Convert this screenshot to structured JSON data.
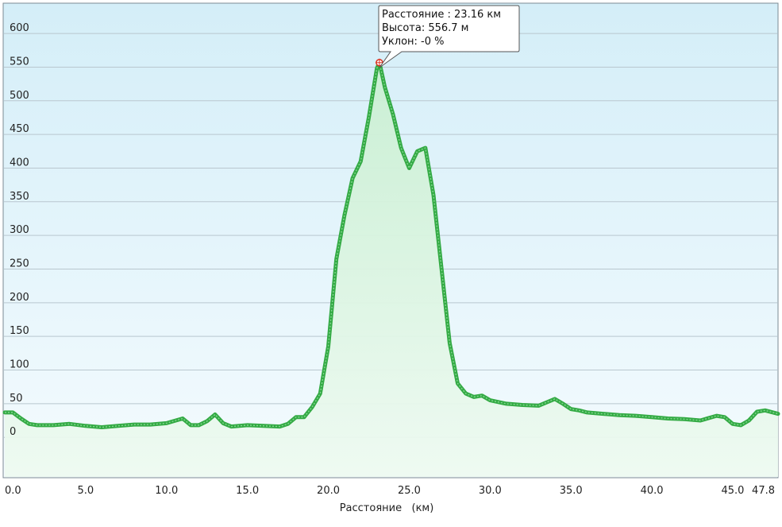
{
  "chart_data": {
    "type": "area",
    "title": "",
    "xlabel": "Расстояние   (км)",
    "ylabel": "",
    "xlim": [
      0,
      47.8
    ],
    "ylim": [
      -60,
      645
    ],
    "grid": true,
    "x_ticks": [
      {
        "value": 0,
        "label": "0.0"
      },
      {
        "value": 5,
        "label": "5.0"
      },
      {
        "value": 10,
        "label": "10.0"
      },
      {
        "value": 15,
        "label": "15.0"
      },
      {
        "value": 20,
        "label": "20.0"
      },
      {
        "value": 25,
        "label": "25.0"
      },
      {
        "value": 30,
        "label": "30.0"
      },
      {
        "value": 35,
        "label": "35.0"
      },
      {
        "value": 40,
        "label": "40.0"
      },
      {
        "value": 45,
        "label": "45.0"
      },
      {
        "value": 47.8,
        "label": "47.8"
      }
    ],
    "y_ticks": [
      0,
      50,
      100,
      150,
      200,
      250,
      300,
      350,
      400,
      450,
      500,
      550,
      600
    ],
    "colors": {
      "line": "#33aa44",
      "fill": "#dcf5e0",
      "background_top": "#d4eef8",
      "background_bottom": "#f4fbfe",
      "grid": "#b9c7cf",
      "marker": "#dd3322"
    },
    "series": [
      {
        "x": [
          0,
          0.5,
          1.0,
          1.5,
          2.0,
          3.0,
          4.0,
          5.0,
          6.0,
          7.0,
          8.0,
          9.0,
          10.0,
          11.0,
          11.5,
          12.0,
          12.5,
          13.0,
          13.5,
          14.0,
          15.0,
          16.0,
          17.0,
          17.5,
          18.0,
          18.5,
          19.0,
          19.5,
          20.0,
          20.5,
          21.0,
          21.5,
          22.0,
          22.5,
          23.0,
          23.16,
          23.5,
          24.0,
          24.5,
          25.0,
          25.5,
          26.0,
          26.5,
          27.0,
          27.5,
          28.0,
          28.5,
          29.0,
          29.5,
          30.0,
          31.0,
          32.0,
          33.0,
          34.0,
          34.5,
          35.0,
          35.5,
          36.0,
          37.0,
          38.0,
          39.0,
          40.0,
          41.0,
          42.0,
          43.0,
          44.0,
          44.5,
          45.0,
          45.5,
          46.0,
          46.5,
          47.0,
          47.8
        ],
        "y": [
          37,
          37,
          28,
          20,
          18,
          18,
          20,
          17,
          15,
          17,
          19,
          19,
          21,
          28,
          18,
          18,
          24,
          34,
          21,
          16,
          18,
          17,
          16,
          20,
          30,
          30,
          45,
          65,
          135,
          265,
          330,
          385,
          410,
          475,
          548,
          557,
          520,
          480,
          430,
          400,
          425,
          430,
          360,
          250,
          140,
          80,
          65,
          60,
          62,
          55,
          50,
          48,
          47,
          57,
          50,
          42,
          40,
          37,
          35,
          33,
          32,
          30,
          28,
          27,
          25,
          32,
          30,
          20,
          18,
          25,
          38,
          40,
          35
        ]
      }
    ],
    "marker": {
      "x": 23.16,
      "y": 556.7,
      "tooltip": {
        "line1": "Расстояние  : 23.16 км",
        "line2": "Высота: 556.7 м",
        "line3": "Уклон: -0 %"
      }
    }
  }
}
